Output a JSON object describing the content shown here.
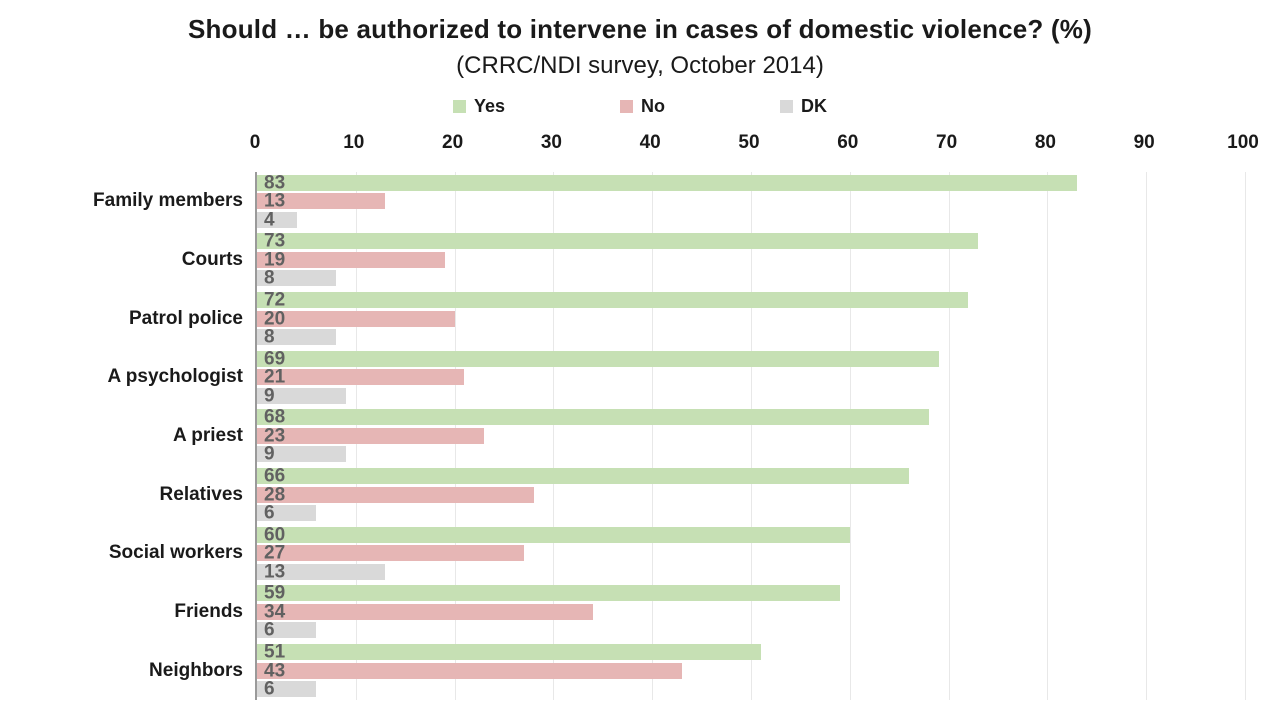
{
  "title": "Should … be authorized to intervene in cases of domestic violence? (%)",
  "subtitle": "(CRRC/NDI survey, October 2014)",
  "legend": [
    {
      "label": "Yes",
      "color": "#c6e0b4"
    },
    {
      "label": "No",
      "color": "#e6b6b5"
    },
    {
      "label": "DK",
      "color": "#d9d9d9"
    }
  ],
  "colors": {
    "yes": "#c6e0b4",
    "no": "#e6b6b5",
    "dk": "#d9d9d9",
    "value_label": "#616161",
    "axis_line": "#9a9a9a",
    "gridline": "#e8e8e8"
  },
  "chart_data": {
    "type": "bar",
    "orientation": "horizontal",
    "title": "Should … be authorized to intervene in cases of domestic violence? (%)",
    "subtitle": "(CRRC/NDI survey, October 2014)",
    "categories": [
      "Family members",
      "Courts",
      "Patrol police",
      "A psychologist",
      "A priest",
      "Relatives",
      "Social workers",
      "Friends",
      "Neighbors"
    ],
    "series": [
      {
        "name": "Yes",
        "color": "#c6e0b4",
        "values": [
          83,
          73,
          72,
          69,
          68,
          66,
          60,
          59,
          51
        ]
      },
      {
        "name": "No",
        "color": "#e6b6b5",
        "values": [
          13,
          19,
          20,
          21,
          23,
          28,
          27,
          34,
          43
        ]
      },
      {
        "name": "DK",
        "color": "#d9d9d9",
        "values": [
          4,
          8,
          8,
          9,
          9,
          6,
          13,
          6,
          6
        ]
      }
    ],
    "xlabel": "",
    "ylabel": "",
    "xlim": [
      0,
      100
    ],
    "x_ticks": [
      0,
      10,
      20,
      30,
      40,
      50,
      60,
      70,
      80,
      90,
      100
    ],
    "grid": true,
    "legend_position": "top",
    "value_labels": true
  }
}
